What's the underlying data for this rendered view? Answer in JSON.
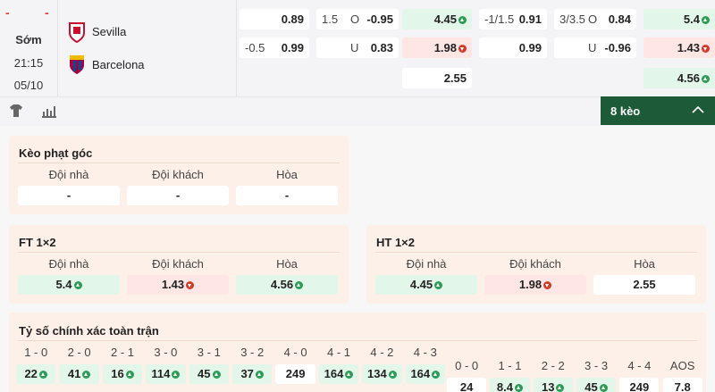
{
  "match": {
    "status_dashes": [
      "-",
      "-"
    ],
    "period": "Sớm",
    "time": "21:15",
    "date": "05/10",
    "home": "Sevilla",
    "away": "Barcelona"
  },
  "odds": [
    {
      "rows": [
        {
          "value": "0.89"
        },
        {
          "handicap": "-0.5",
          "value": "0.99"
        }
      ]
    },
    {
      "rows": [
        {
          "handicap": "1.5",
          "side": "O",
          "value": "-0.95"
        },
        {
          "side": "U",
          "value": "0.83"
        }
      ]
    },
    {
      "rows": [
        {
          "value": "4.45",
          "trend": "up"
        },
        {
          "value": "1.98",
          "trend": "down"
        },
        {
          "value": "2.55"
        }
      ]
    },
    {
      "rows": [
        {
          "handicap": "-1/1.5",
          "value": "0.91"
        },
        {
          "value": "0.99"
        }
      ]
    },
    {
      "rows": [
        {
          "handicap": "3/3.5",
          "side": "O",
          "value": "0.84"
        },
        {
          "side": "U",
          "value": "-0.96"
        }
      ]
    },
    {
      "rows": [
        {
          "value": "5.4",
          "trend": "up"
        },
        {
          "value": "1.43",
          "trend": "down"
        },
        {
          "value": "4.56",
          "trend": "up"
        }
      ]
    }
  ],
  "toolbar": {
    "more": "8 kèo"
  },
  "markets": [
    {
      "title": "Kèo phạt góc",
      "headers": [
        "Đội nhà",
        "Đội khách",
        "Hòa"
      ],
      "cells": [
        {
          "value": "-"
        },
        {
          "value": "-"
        },
        {
          "value": "-"
        }
      ]
    },
    {
      "title": "FT 1×2",
      "headers": [
        "Đội nhà",
        "Đội khách",
        "Hòa"
      ],
      "cells": [
        {
          "value": "5.4",
          "trend": "up"
        },
        {
          "value": "1.43",
          "trend": "down"
        },
        {
          "value": "4.56",
          "trend": "up"
        }
      ]
    },
    {
      "title": "HT 1×2",
      "headers": [
        "Đội nhà",
        "Đội khách",
        "Hòa"
      ],
      "cells": [
        {
          "value": "4.45",
          "trend": "up"
        },
        {
          "value": "1.98",
          "trend": "down"
        },
        {
          "value": "2.55"
        }
      ]
    }
  ],
  "correct_score": {
    "title": "Tỷ số chính xác toàn trận",
    "main": [
      {
        "score": "1 - 0",
        "value": "22",
        "trend": "up"
      },
      {
        "score": "2 - 0",
        "value": "41",
        "trend": "up"
      },
      {
        "score": "2 - 1",
        "value": "16",
        "trend": "up"
      },
      {
        "score": "3 - 0",
        "value": "114",
        "trend": "up"
      },
      {
        "score": "3 - 1",
        "value": "45",
        "trend": "up"
      },
      {
        "score": "3 - 2",
        "value": "37",
        "trend": "up"
      },
      {
        "score": "4 - 0",
        "value": "249"
      },
      {
        "score": "4 - 1",
        "value": "164",
        "trend": "up"
      },
      {
        "score": "4 - 2",
        "value": "134",
        "trend": "up"
      },
      {
        "score": "4 - 3",
        "value": "164",
        "trend": "up"
      }
    ],
    "extra": [
      {
        "score": "0 - 0",
        "value": "24"
      },
      {
        "score": "1 - 1",
        "value": "8.4",
        "trend": "up"
      },
      {
        "score": "2 - 2",
        "value": "13",
        "trend": "up"
      },
      {
        "score": "3 - 3",
        "value": "45",
        "trend": "up"
      },
      {
        "score": "4 - 4",
        "value": "249"
      },
      {
        "score": "AOS",
        "value": "7.8"
      }
    ]
  }
}
